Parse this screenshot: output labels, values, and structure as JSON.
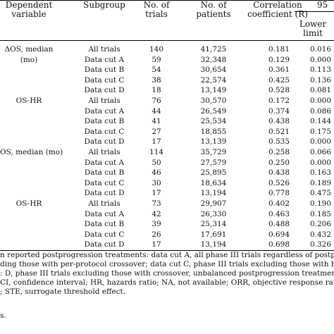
{
  "table": {
    "headers": {
      "dependent_variable": [
        "Dependent",
        "variable"
      ],
      "subgroup": "Subgroup",
      "no_of_trials": [
        "No. of",
        "trials"
      ],
      "no_of_patients": [
        "No. of",
        "patients"
      ],
      "correlation_coefficient": [
        "Correlation",
        "coefficient (R)"
      ],
      "ci_group": "95",
      "lower_limit": [
        "Lower",
        "limit"
      ]
    },
    "rows": [
      {
        "dep": "ΔOS, median",
        "sub": "All trials",
        "trials": "140",
        "patients": "41,725",
        "r": "0.181",
        "lower": "0.016"
      },
      {
        "dep": "(mo)",
        "sub": "Data cut A",
        "trials": "59",
        "patients": "32,348",
        "r": "0.129",
        "lower": "0.000"
      },
      {
        "dep": "",
        "sub": "Data cut B",
        "trials": "54",
        "patients": "30,654",
        "r": "0.361",
        "lower": "0.113"
      },
      {
        "dep": "",
        "sub": "Data cut C",
        "trials": "38",
        "patients": "22,574",
        "r": "0.425",
        "lower": "0.136"
      },
      {
        "dep": "",
        "sub": "Data cut D",
        "trials": "18",
        "patients": "13,149",
        "r": "0.528",
        "lower": "0.081"
      },
      {
        "dep": "OS-HR",
        "sub": "All trials",
        "trials": "76",
        "patients": "30,570",
        "r": "0.172",
        "lower": "0.000"
      },
      {
        "dep": "",
        "sub": "Data cut A",
        "trials": "44",
        "patients": "26,549",
        "r": "0.374",
        "lower": "0.086"
      },
      {
        "dep": "",
        "sub": "Data cut B",
        "trials": "41",
        "patients": "25,534",
        "r": "0.438",
        "lower": "0.144"
      },
      {
        "dep": "",
        "sub": "Data cut C",
        "trials": "27",
        "patients": "18,855",
        "r": "0.521",
        "lower": "0.175"
      },
      {
        "dep": "",
        "sub": "Data cut D",
        "trials": "17",
        "patients": "13,139",
        "r": "0.535",
        "lower": "0.000"
      },
      {
        "dep": "OS, median (mo)",
        "sub": "All trials",
        "trials": "114",
        "patients": "35,729",
        "r": "0.258",
        "lower": "0.066"
      },
      {
        "dep": "",
        "sub": "Data cut A",
        "trials": "50",
        "patients": "27,579",
        "r": "0.250",
        "lower": "0.000"
      },
      {
        "dep": "",
        "sub": "Data cut B",
        "trials": "46",
        "patients": "25,895",
        "r": "0.438",
        "lower": "0.163"
      },
      {
        "dep": "",
        "sub": "Data cut C",
        "trials": "30",
        "patients": "18,634",
        "r": "0.526",
        "lower": "0.189"
      },
      {
        "dep": "",
        "sub": "Data cut D",
        "trials": "17",
        "patients": "13,194",
        "r": "0.778",
        "lower": "0.475"
      },
      {
        "dep": "OS-HR",
        "sub": "All trials",
        "trials": "73",
        "patients": "29,907",
        "r": "0.402",
        "lower": "0.190"
      },
      {
        "dep": "",
        "sub": "Data cut A",
        "trials": "42",
        "patients": "26,330",
        "r": "0.463",
        "lower": "0.185"
      },
      {
        "dep": "",
        "sub": "Data cut B",
        "trials": "39",
        "patients": "25,314",
        "r": "0.488",
        "lower": "0.206"
      },
      {
        "dep": "",
        "sub": "Data cut C",
        "trials": "26",
        "patients": "17,691",
        "r": "0.694",
        "lower": "0.432"
      },
      {
        "dep": "",
        "sub": "Data cut D",
        "trials": "17",
        "patients": "13,194",
        "r": "0.698",
        "lower": "0.326"
      }
    ]
  },
  "footnotes": [
    "n reported postprogression treatments: data cut A, all phase III trials regardless of postprogression",
    "ding those with per-protocol crossover; data cut C, phase III trials excluding those with both per-pr",
    ": D, phase III trials excluding those with crossover, unbalanced postprogression treatments, or in",
    " CI, confidence interval; HR, hazards ratio; NA, not available; ORR, objective response rate; OS",
    "; STE, surrogate threshold effect.",
    "s."
  ]
}
